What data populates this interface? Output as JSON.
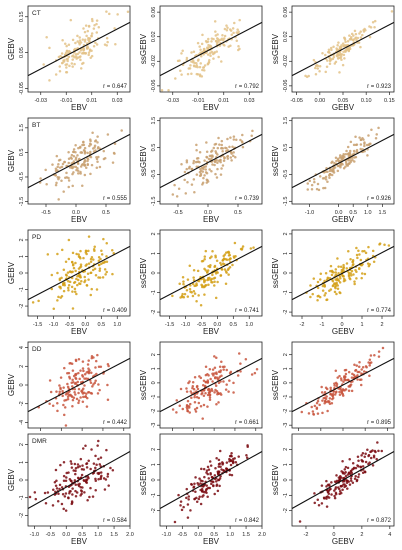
{
  "figure": {
    "rows": [
      {
        "trait": "CT",
        "color": "#E3C287",
        "panels": [
          {
            "xlabel": "EBV",
            "ylabel": "GEBV",
            "r": "r = 0.647",
            "slope": 1.0,
            "xlim": [
              -0.04,
              0.04
            ],
            "ylim": [
              -0.06,
              0.18
            ],
            "xticks": [
              -0.03,
              -0.01,
              0.01,
              0.03
            ],
            "xtick_labels": [
              "-0.03",
              "-0.01",
              "0.01",
              "0.03"
            ],
            "yticks": [
              -0.05,
              0.05,
              0.15
            ],
            "ytick_labels": [
              "-0.05",
              "0.05",
              "0.15"
            ]
          },
          {
            "xlabel": "EBV",
            "ylabel": "ssGEBV",
            "r": "r = 0.792",
            "slope": 1.0,
            "xlim": [
              -0.04,
              0.04
            ],
            "ylim": [
              -0.07,
              0.07
            ],
            "xticks": [
              -0.03,
              -0.01,
              0.01,
              0.03
            ],
            "xtick_labels": [
              "-0.03",
              "-0.01",
              "0.01",
              "0.03"
            ],
            "yticks": [
              -0.06,
              -0.02,
              0.02,
              0.06
            ],
            "ytick_labels": [
              "-0.06",
              "-0.02",
              "0.02",
              "0.06"
            ]
          },
          {
            "xlabel": "GEBV",
            "ylabel": "ssGEBV",
            "r": "r = 0.923",
            "slope": 1.0,
            "xlim": [
              -0.06,
              0.16
            ],
            "ylim": [
              -0.07,
              0.07
            ],
            "xticks": [
              -0.05,
              0.0,
              0.05,
              0.1,
              0.15
            ],
            "xtick_labels": [
              "-0.05",
              "0.00",
              "0.05",
              "0.10",
              "0.15"
            ],
            "yticks": [
              -0.06,
              -0.02,
              0.02,
              0.06
            ],
            "ytick_labels": [
              "-0.06",
              "-0.02",
              "0.02",
              "0.06"
            ]
          }
        ]
      },
      {
        "trait": "BT",
        "color": "#C8A070",
        "panels": [
          {
            "xlabel": "EBV",
            "ylabel": "GEBV",
            "r": "r = 0.555",
            "slope": 1.0,
            "xlim": [
              -0.8,
              0.9
            ],
            "ylim": [
              -1.6,
              1.9
            ],
            "xticks": [
              -0.5,
              0.0,
              0.5
            ],
            "xtick_labels": [
              "-0.5",
              "0.0",
              "0.5"
            ],
            "yticks": [
              -1.5,
              -0.5,
              0.5,
              1.5
            ],
            "ytick_labels": [
              "-1.5",
              "-0.5",
              "0.5",
              "1.5"
            ]
          },
          {
            "xlabel": "EBV",
            "ylabel": "ssGEBV",
            "r": "r = 0.739",
            "slope": 1.0,
            "xlim": [
              -0.8,
              0.9
            ],
            "ylim": [
              -1.6,
              1.6
            ],
            "xticks": [
              -0.5,
              0.0,
              0.5
            ],
            "xtick_labels": [
              "-0.5",
              "0.0",
              "0.5"
            ],
            "yticks": [
              -1.5,
              -0.5,
              0.5,
              1.5
            ],
            "ytick_labels": [
              "-1.5",
              "-0.5",
              "0.5",
              "1.5"
            ]
          },
          {
            "xlabel": "GEBV",
            "ylabel": "ssGEBV",
            "r": "r = 0.926",
            "slope": 1.0,
            "xlim": [
              -1.6,
              1.9
            ],
            "ylim": [
              -1.6,
              1.6
            ],
            "xticks": [
              -1.0,
              0.0,
              0.5,
              1.0,
              1.5
            ],
            "xtick_labels": [
              "-1.0",
              "0.0",
              "0.5",
              "1.0",
              "1.5"
            ],
            "yticks": [
              -1.5,
              -0.5,
              0.5,
              1.5
            ],
            "ytick_labels": [
              "-1.5",
              "-0.5",
              "0.5",
              "1.5"
            ]
          }
        ]
      },
      {
        "trait": "PD",
        "color": "#D4A017",
        "panels": [
          {
            "xlabel": "EBV",
            "ylabel": "GEBV",
            "r": "r = 0.409",
            "slope": 1.0,
            "xlim": [
              -1.8,
              1.4
            ],
            "ylim": [
              -2.6,
              2.6
            ],
            "xticks": [
              -1.5,
              -1.0,
              -0.5,
              0.0,
              0.5,
              1.0
            ],
            "xtick_labels": [
              "-1.5",
              "-1.0",
              "-0.5",
              "0.0",
              "0.5",
              "1.0"
            ],
            "yticks": [
              -2,
              -1,
              0,
              1,
              2
            ],
            "ytick_labels": [
              "-2",
              "-1",
              "0",
              "1",
              "2"
            ]
          },
          {
            "xlabel": "EBV",
            "ylabel": "ssGEBV",
            "r": "r = 0.741",
            "slope": 1.0,
            "xlim": [
              -1.8,
              1.4
            ],
            "ylim": [
              -2.2,
              2.2
            ],
            "xticks": [
              -1.5,
              -1.0,
              -0.5,
              0.0,
              0.5,
              1.0
            ],
            "xtick_labels": [
              "-1.5",
              "-1.0",
              "-0.5",
              "0.0",
              "0.5",
              "1.0"
            ],
            "yticks": [
              -2,
              -1,
              0,
              1,
              2
            ],
            "ytick_labels": [
              "-2",
              "-1",
              "0",
              "1",
              "2"
            ]
          },
          {
            "xlabel": "GEBV",
            "ylabel": "ssGEBV",
            "r": "r = 0.774",
            "slope": 1.0,
            "xlim": [
              -2.5,
              2.6
            ],
            "ylim": [
              -2.2,
              2.2
            ],
            "xticks": [
              -2,
              -1,
              0,
              1,
              2
            ],
            "xtick_labels": [
              "-2",
              "-1",
              "0",
              "1",
              "2"
            ],
            "yticks": [
              -2,
              -1,
              0,
              1,
              2
            ],
            "ytick_labels": [
              "-2",
              "-1",
              "0",
              "1",
              "2"
            ]
          }
        ]
      },
      {
        "trait": "DD",
        "color": "#C8553D",
        "panels": [
          {
            "xlabel": "EBV",
            "ylabel": "GEBV",
            "r": "r = 0.442",
            "slope": 1.0,
            "xlim": [
              -2.6,
              2.3
            ],
            "ylim": [
              -4.6,
              4.6
            ],
            "xticks": [
              -2,
              -1,
              0,
              1,
              2
            ],
            "xtick_labels": [
              "-2",
              "-1",
              "0",
              "1",
              "2"
            ],
            "yticks": [
              -4,
              -2,
              0,
              2,
              4
            ],
            "ytick_labels": [
              "-4",
              "-2",
              "0",
              "2",
              "4"
            ]
          },
          {
            "xlabel": "EBV",
            "ylabel": "ssGEBV",
            "r": "r = 0.661",
            "slope": 1.0,
            "xlim": [
              -2.6,
              2.3
            ],
            "ylim": [
              -3.2,
              2.9
            ],
            "xticks": [
              -2,
              -1,
              0,
              1,
              2
            ],
            "xtick_labels": [
              "-2",
              "-1",
              "0",
              "1",
              "2"
            ],
            "yticks": [
              -3,
              -2,
              -1,
              0,
              1,
              2
            ],
            "ytick_labels": [
              "-3",
              "-2",
              "-1",
              "0",
              "1",
              "2"
            ]
          },
          {
            "xlabel": "GEBV",
            "ylabel": "ssGEBV",
            "r": "r = 0.895",
            "slope": 1.0,
            "xlim": [
              -4.6,
              4.6
            ],
            "ylim": [
              -3.2,
              2.9
            ],
            "xticks": [
              -4,
              -2,
              0,
              2,
              4
            ],
            "xtick_labels": [
              "-4",
              "-2",
              "0",
              "2",
              "4"
            ],
            "yticks": [
              -3,
              -2,
              -1,
              0,
              1,
              2
            ],
            "ytick_labels": [
              "-3",
              "-2",
              "-1",
              "0",
              "1",
              "2"
            ]
          }
        ]
      },
      {
        "trait": "DMR",
        "color": "#7A0A10",
        "panels": [
          {
            "xlabel": "EBV",
            "ylabel": "GEBV",
            "r": "r = 0.584",
            "slope": 1.0,
            "xlim": [
              -1.2,
              2.0
            ],
            "ylim": [
              -2.6,
              2.6
            ],
            "xticks": [
              -1.0,
              -0.5,
              0.0,
              0.5,
              1.0,
              1.5,
              2.0
            ],
            "xtick_labels": [
              "-1.0",
              "-0.5",
              "0.0",
              "0.5",
              "1.0",
              "1.5",
              "2.0"
            ],
            "yticks": [
              -2,
              -1,
              0,
              1,
              2
            ],
            "ytick_labels": [
              "-2",
              "-1",
              "0",
              "1",
              "2"
            ]
          },
          {
            "xlabel": "EBV",
            "ylabel": "ssGEBV",
            "r": "r = 0.842",
            "slope": 1.0,
            "xlim": [
              -1.2,
              2.0
            ],
            "ylim": [
              -3.0,
              3.0
            ],
            "xticks": [
              -1.0,
              -0.5,
              0.0,
              0.5,
              1.0,
              1.5,
              2.0
            ],
            "xtick_labels": [
              "-1.0",
              "-0.5",
              "0.0",
              "0.5",
              "1.0",
              "1.5",
              "2.0"
            ],
            "yticks": [
              -2,
              -1,
              0,
              1,
              2
            ],
            "ytick_labels": [
              "-2",
              "-1",
              "0",
              "1",
              "2"
            ]
          },
          {
            "xlabel": "GEBV",
            "ylabel": "ssGEBV",
            "r": "r = 0.872",
            "slope": 1.0,
            "xlim": [
              -3.0,
              4.3
            ],
            "ylim": [
              -3.0,
              3.0
            ],
            "xticks": [
              -2,
              0,
              2,
              4
            ],
            "xtick_labels": [
              "-2",
              "0",
              "2",
              "4"
            ],
            "yticks": [
              -2,
              -1,
              0,
              1,
              2
            ],
            "ytick_labels": [
              "-2",
              "-1",
              "0",
              "1",
              "2"
            ]
          }
        ]
      }
    ]
  },
  "chart_data": {
    "type": "scatter",
    "layout": "5 rows x 3 columns",
    "rows": [
      "CT",
      "BT",
      "PD",
      "DD",
      "DMR"
    ],
    "columns": [
      {
        "x": "EBV",
        "y": "GEBV"
      },
      {
        "x": "EBV",
        "y": "ssGEBV"
      },
      {
        "x": "GEBV",
        "y": "ssGEBV"
      }
    ],
    "correlations": {
      "CT": [
        0.647,
        0.792,
        0.923
      ],
      "BT": [
        0.555,
        0.739,
        0.926
      ],
      "PD": [
        0.409,
        0.741,
        0.774
      ],
      "DD": [
        0.442,
        0.661,
        0.895
      ],
      "DMR": [
        0.584,
        0.842,
        0.872
      ]
    },
    "regression_line": true,
    "grid": false,
    "points_per_panel": 150
  }
}
